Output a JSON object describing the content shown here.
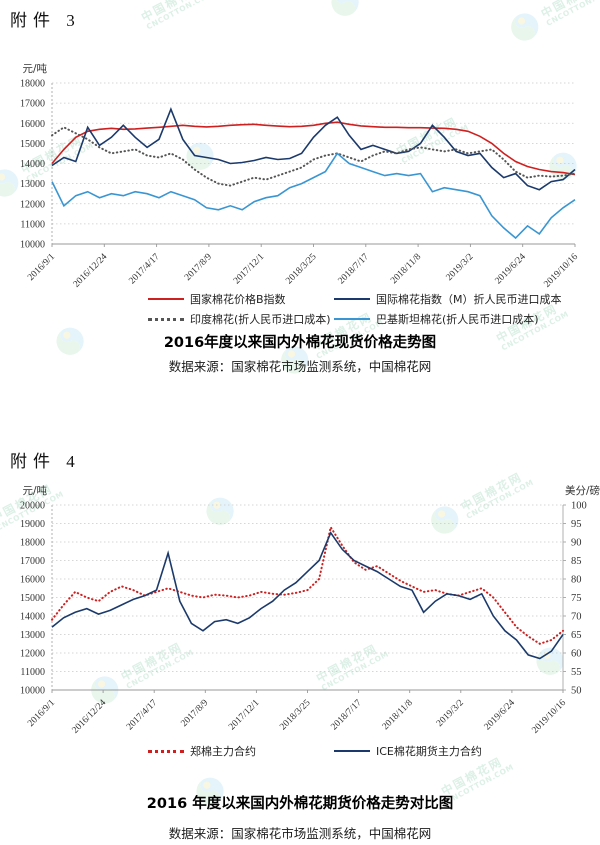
{
  "page": {
    "attachment3_label": "附件 3",
    "attachment4_label": "附件 4",
    "watermark_text": "中国棉花网",
    "watermark_subtext": "CNCOTTON.COM",
    "watermark_color": "#aedcc6"
  },
  "chart1": {
    "title": "2016年度以来国内外棉花现货价格走势图",
    "source": "数据来源：国家棉花市场监测系统，中国棉花网"
  },
  "chart2": {
    "title": "2016 年度以来国内外棉花期货价格走势对比图",
    "source": "数据来源：国家棉花市场监测系统，中国棉花网"
  },
  "chart_data": [
    {
      "type": "line",
      "title": "2016年度以来国内外棉花现货价格走势图",
      "ylabel": "元/吨",
      "ylim": [
        10000,
        18000
      ],
      "ytick_step": 1000,
      "grid": true,
      "legend_position": "bottom",
      "x_tick_labels": [
        "2016/9/1",
        "2016/12/24",
        "2017/4/17",
        "2017/8/9",
        "2017/12/1",
        "2018/3/25",
        "2018/7/17",
        "2018/11/8",
        "2019/3/2",
        "2019/6/24",
        "2019/10/16"
      ],
      "series": [
        {
          "name": "国家棉花价格B指数",
          "color": "#cf2020",
          "style": "solid",
          "axis": "left",
          "values": [
            14000,
            14700,
            15300,
            15600,
            15700,
            15750,
            15700,
            15720,
            15760,
            15800,
            15850,
            15900,
            15850,
            15820,
            15850,
            15900,
            15930,
            15950,
            15900,
            15860,
            15830,
            15850,
            15900,
            16000,
            16050,
            15950,
            15870,
            15830,
            15800,
            15800,
            15780,
            15780,
            15760,
            15750,
            15700,
            15600,
            15350,
            15000,
            14500,
            14100,
            13850,
            13700,
            13600,
            13550,
            13450
          ]
        },
        {
          "name": "国际棉花指数（M）折人民币进口成本",
          "color": "#1b3a6b",
          "style": "solid",
          "axis": "left",
          "values": [
            13900,
            14300,
            14100,
            15800,
            14900,
            15300,
            15900,
            15300,
            14800,
            15200,
            16700,
            15200,
            14400,
            14300,
            14200,
            14000,
            14050,
            14150,
            14300,
            14200,
            14250,
            14500,
            15300,
            15900,
            16300,
            15400,
            14700,
            14900,
            14700,
            14500,
            14600,
            15000,
            15900,
            15300,
            14600,
            14400,
            14500,
            13800,
            13300,
            13500,
            12900,
            12700,
            13100,
            13200,
            13700
          ]
        },
        {
          "name": "印度棉花(折人民币进口成本)",
          "color": "#555555",
          "style": "dotted",
          "axis": "left",
          "values": [
            15400,
            15800,
            15500,
            15200,
            14800,
            14500,
            14600,
            14700,
            14400,
            14300,
            14500,
            14200,
            13700,
            13300,
            13000,
            12900,
            13100,
            13300,
            13200,
            13400,
            13600,
            13800,
            14200,
            14400,
            14500,
            14300,
            14100,
            14400,
            14600,
            14500,
            14700,
            14800,
            14700,
            14600,
            14700,
            14500,
            14600,
            14700,
            14200,
            13600,
            13300,
            13400,
            13350,
            13400,
            13500
          ]
        },
        {
          "name": "巴基斯坦棉花(折人民币进口成本)",
          "color": "#3a96d2",
          "style": "solid",
          "axis": "left",
          "values": [
            13100,
            11900,
            12400,
            12600,
            12300,
            12500,
            12400,
            12600,
            12500,
            12300,
            12600,
            12400,
            12200,
            11800,
            11700,
            11900,
            11700,
            12100,
            12300,
            12400,
            12800,
            13000,
            13300,
            13600,
            14500,
            14000,
            13800,
            13600,
            13400,
            13500,
            13400,
            13500,
            12600,
            12800,
            12700,
            12600,
            12400,
            11400,
            10800,
            10300,
            10900,
            10500,
            11300,
            11800,
            12200
          ]
        }
      ]
    },
    {
      "type": "line",
      "title": "2016 年度以来国内外棉花期货价格走势对比图",
      "ylabel": "元/吨",
      "y2label": "美分/磅",
      "ylim": [
        10000,
        20000
      ],
      "ytick_step": 1000,
      "y2lim": [
        50,
        100
      ],
      "y2tick_step": 5,
      "grid": true,
      "legend_position": "bottom",
      "x_tick_labels": [
        "2016/9/1",
        "2016/12/24",
        "2017/4/17",
        "2017/8/9",
        "2017/12/1",
        "2018/3/25",
        "2018/7/17",
        "2018/11/8",
        "2019/3/2",
        "2019/6/24",
        "2019/10/16"
      ],
      "series": [
        {
          "name": "郑棉主力合约",
          "color": "#cf2020",
          "style": "dotted",
          "axis": "left",
          "values": [
            13800,
            14600,
            15300,
            15000,
            14800,
            15300,
            15600,
            15400,
            15100,
            15300,
            15500,
            15300,
            15100,
            15000,
            15150,
            15100,
            15000,
            15100,
            15300,
            15200,
            15150,
            15250,
            15400,
            16000,
            18800,
            17800,
            16900,
            16500,
            16700,
            16300,
            15900,
            15600,
            15300,
            15400,
            15200,
            15100,
            15300,
            15500,
            15000,
            14200,
            13400,
            12900,
            12500,
            12700,
            13200
          ]
        },
        {
          "name": "ICE棉花期货主力合约",
          "color": "#1b3a6b",
          "style": "solid",
          "axis": "right",
          "values": [
            67,
            69.5,
            71,
            72,
            70.5,
            71.5,
            73,
            74.5,
            75.5,
            77,
            87,
            74,
            68,
            66,
            68.5,
            69,
            68,
            69.5,
            72,
            74,
            77,
            79,
            82,
            85,
            92.5,
            88,
            85,
            83.5,
            82,
            80,
            78,
            77,
            71,
            74,
            76,
            75.5,
            74.5,
            76,
            70,
            66,
            63.5,
            59.5,
            58.5,
            60.5,
            65
          ]
        }
      ]
    }
  ]
}
